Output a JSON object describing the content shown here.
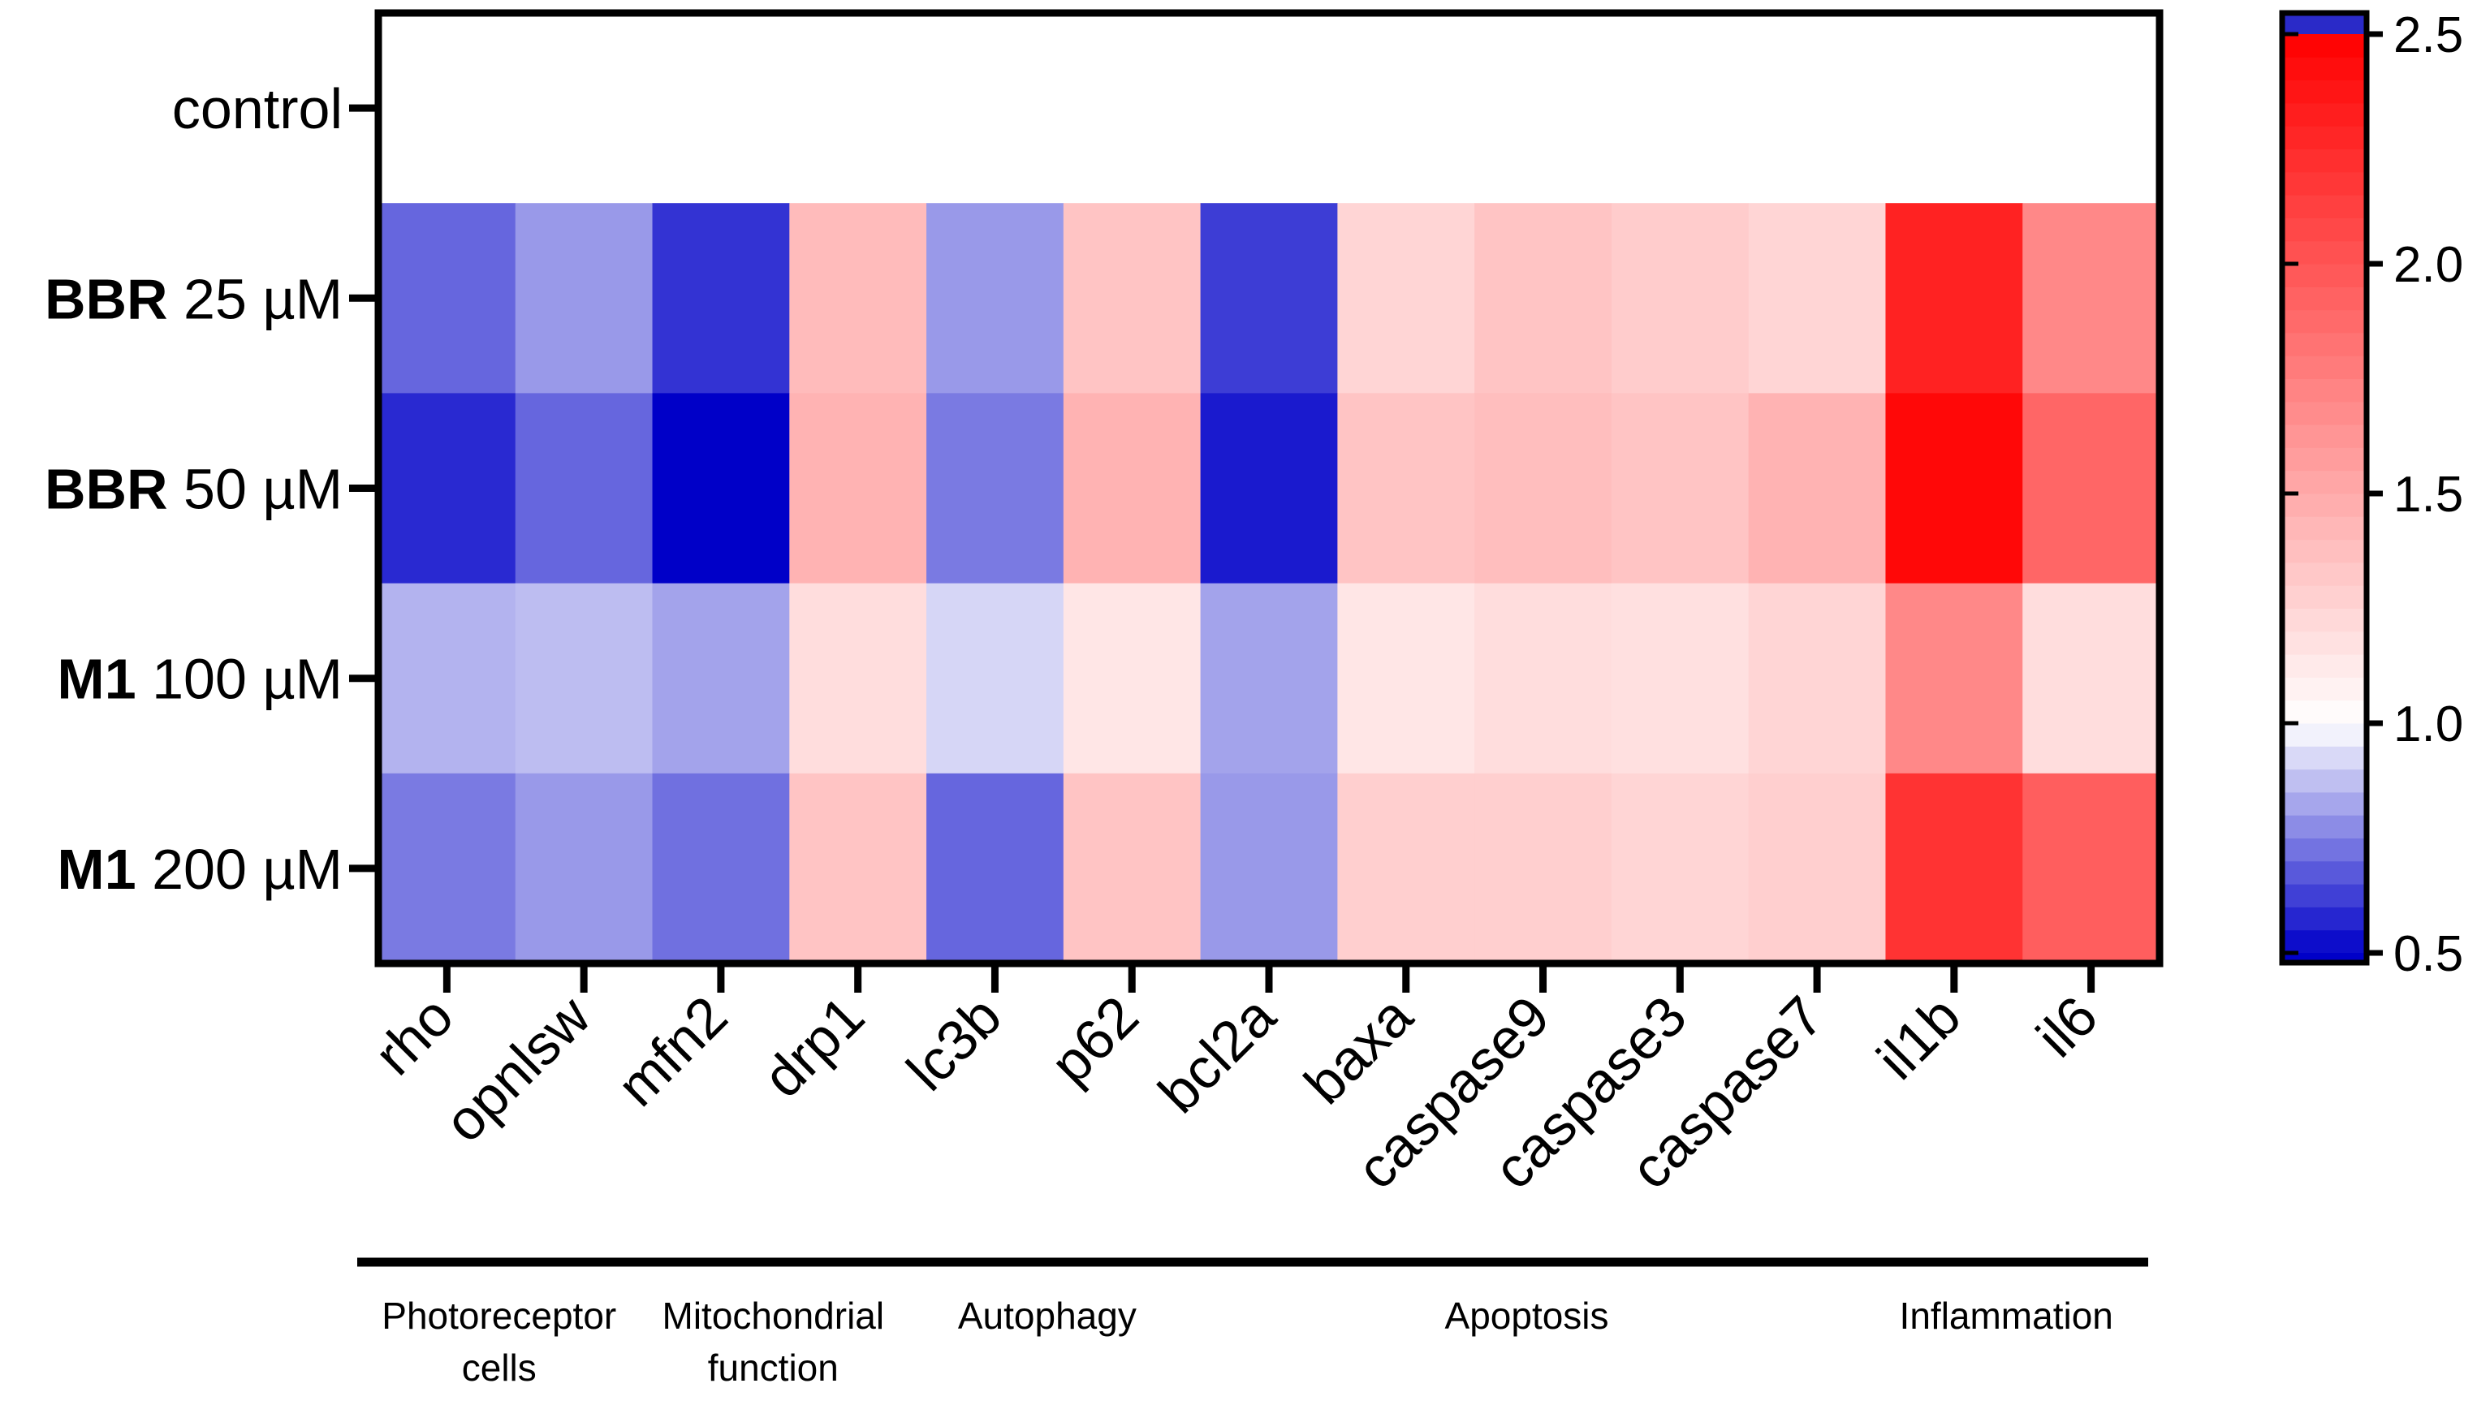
{
  "chart_data": {
    "type": "heatmap",
    "rows": [
      {
        "name": "control"
      },
      {
        "drug": "BBR",
        "dose": "25 µM"
      },
      {
        "drug": "BBR",
        "dose": "50 µM"
      },
      {
        "drug": "M1",
        "dose": "100 µM"
      },
      {
        "drug": "M1",
        "dose": "200 µM"
      }
    ],
    "groups": [
      {
        "label": [
          "Photoreceptor",
          "cells"
        ],
        "columns": [
          "rho",
          "opnlsw"
        ]
      },
      {
        "label": [
          "Mitochondrial",
          "function"
        ],
        "columns": [
          "mfn2",
          "drp1"
        ]
      },
      {
        "label": [
          "Autophagy"
        ],
        "columns": [
          "lc3b",
          "p62"
        ]
      },
      {
        "label": [
          "Apoptosis"
        ],
        "columns": [
          "bcl2a",
          "baxa",
          "caspase9",
          "caspase3",
          "caspase7"
        ]
      },
      {
        "label": [
          "Inflammation"
        ],
        "columns": [
          "il1b",
          "il6"
        ]
      }
    ],
    "values": [
      [
        1,
        1,
        1,
        1,
        1,
        1,
        1,
        1,
        1,
        1,
        1,
        1,
        1
      ],
      [
        0.7,
        0.8,
        0.6,
        1.4,
        0.8,
        1.35,
        0.62,
        1.25,
        1.35,
        1.3,
        1.25,
        2.3,
        1.7
      ],
      [
        0.58,
        0.7,
        0.5,
        1.45,
        0.74,
        1.45,
        0.55,
        1.35,
        1.38,
        1.35,
        1.45,
        2.45,
        1.9
      ],
      [
        0.85,
        0.87,
        0.82,
        1.2,
        0.92,
        1.15,
        0.82,
        1.15,
        1.2,
        1.18,
        1.25,
        1.7,
        1.2
      ],
      [
        0.74,
        0.8,
        0.72,
        1.35,
        0.7,
        1.35,
        0.8,
        1.28,
        1.28,
        1.25,
        1.28,
        2.2,
        1.95
      ]
    ],
    "colorbar": {
      "lim": [
        0.5,
        2.5
      ],
      "ticks": [
        {
          "value": 0.5,
          "label": "0.5"
        },
        {
          "value": 1,
          "label": "1.0"
        },
        {
          "value": 1.5,
          "label": "1.5"
        },
        {
          "value": 2,
          "label": "2.0"
        },
        {
          "value": 2.5,
          "label": "2.5"
        }
      ],
      "center": 1,
      "low_color": "#0000c8",
      "mid_color": "#ffffff",
      "high_color": "#ff0000",
      "over_color": "#2a2ac8"
    }
  }
}
